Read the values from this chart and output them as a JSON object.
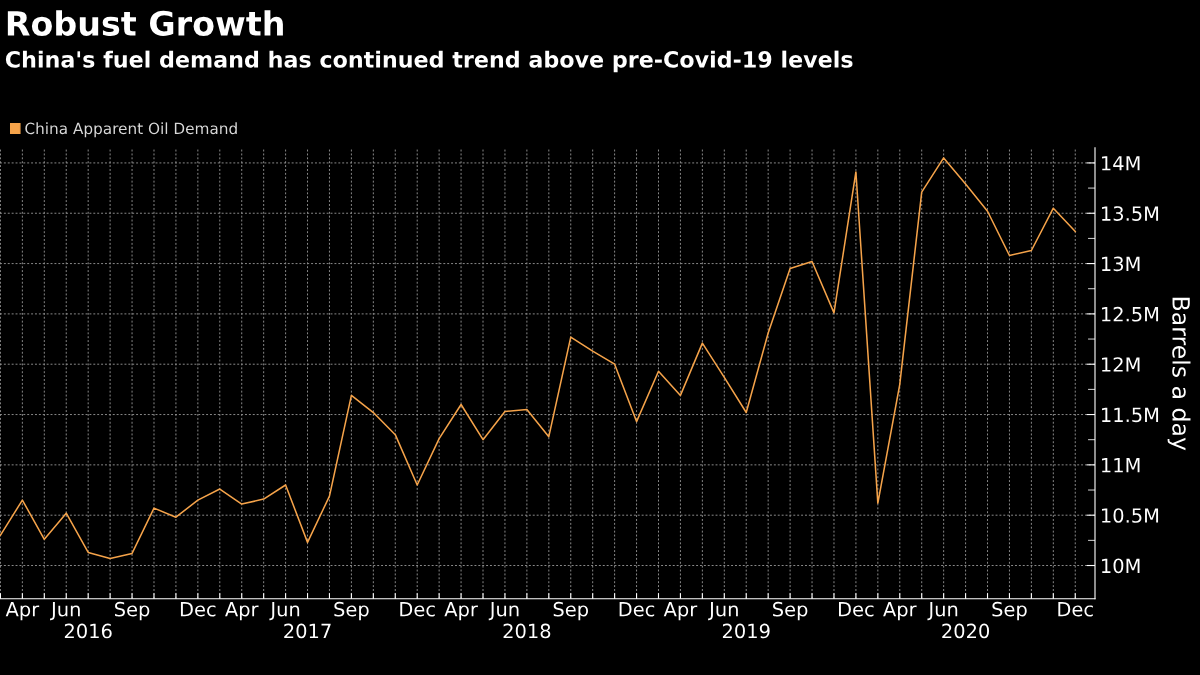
{
  "chart_data": {
    "type": "line",
    "title": "Robust Growth",
    "subtitle": "China's fuel demand has continued trend above pre-Covid-19 levels",
    "ylabel": "Barrels a day",
    "categories": [
      null,
      "Apr",
      null,
      "Jun",
      "\n2016",
      null,
      "Sep",
      null,
      null,
      "Dec",
      null,
      "Apr",
      null,
      "Jun",
      "\n2017",
      null,
      "Sep",
      null,
      null,
      "Dec",
      null,
      "Apr",
      null,
      "Jun",
      "\n2018",
      null,
      "Sep",
      null,
      null,
      "Dec",
      null,
      "Apr",
      null,
      "Jun",
      "\n2019",
      null,
      "Sep",
      null,
      null,
      "Dec",
      null,
      "Apr",
      null,
      "Jun",
      "\n2020",
      null,
      "Sep",
      null,
      null,
      "Dec"
    ],
    "series": [
      {
        "name": "China Apparent Oil Demand",
        "color": "#f5a34a",
        "values": [
          10.3,
          10.65,
          10.26,
          10.52,
          10.13,
          10.07,
          10.12,
          10.57,
          10.48,
          10.65,
          10.76,
          10.61,
          10.66,
          10.8,
          10.23,
          10.69,
          11.69,
          11.52,
          11.3,
          10.8,
          11.26,
          11.6,
          11.25,
          11.53,
          11.55,
          11.28,
          12.27,
          12.13,
          12.0,
          11.43,
          11.93,
          11.69,
          12.21,
          11.87,
          11.52,
          12.31,
          12.95,
          13.02,
          12.51,
          13.91,
          10.62,
          11.8,
          13.71,
          14.05,
          13.79,
          13.52,
          13.08,
          13.13,
          13.55,
          13.32
        ]
      }
    ],
    "ylim": [
      9.67,
      14.15
    ],
    "yticks": [
      {
        "value": 10,
        "label": "10M"
      },
      {
        "value": 10.25,
        "label": null
      },
      {
        "value": 10.5,
        "label": "10.5M"
      },
      {
        "value": 10.75,
        "label": null
      },
      {
        "value": 11,
        "label": "11M"
      },
      {
        "value": 11.25,
        "label": null
      },
      {
        "value": 11.5,
        "label": "11.5M"
      },
      {
        "value": 11.75,
        "label": null
      },
      {
        "value": 12,
        "label": "12M"
      },
      {
        "value": 12.25,
        "label": null
      },
      {
        "value": 12.5,
        "label": "12.5M"
      },
      {
        "value": 12.75,
        "label": null
      },
      {
        "value": 13,
        "label": "13M"
      },
      {
        "value": 13.25,
        "label": null
      },
      {
        "value": 13.5,
        "label": "13.5M"
      },
      {
        "value": 13.75,
        "label": null
      },
      {
        "value": 14,
        "label": "14M"
      }
    ],
    "grid": true,
    "legend": "top left",
    "marker": "none",
    "line_style": "solid"
  }
}
